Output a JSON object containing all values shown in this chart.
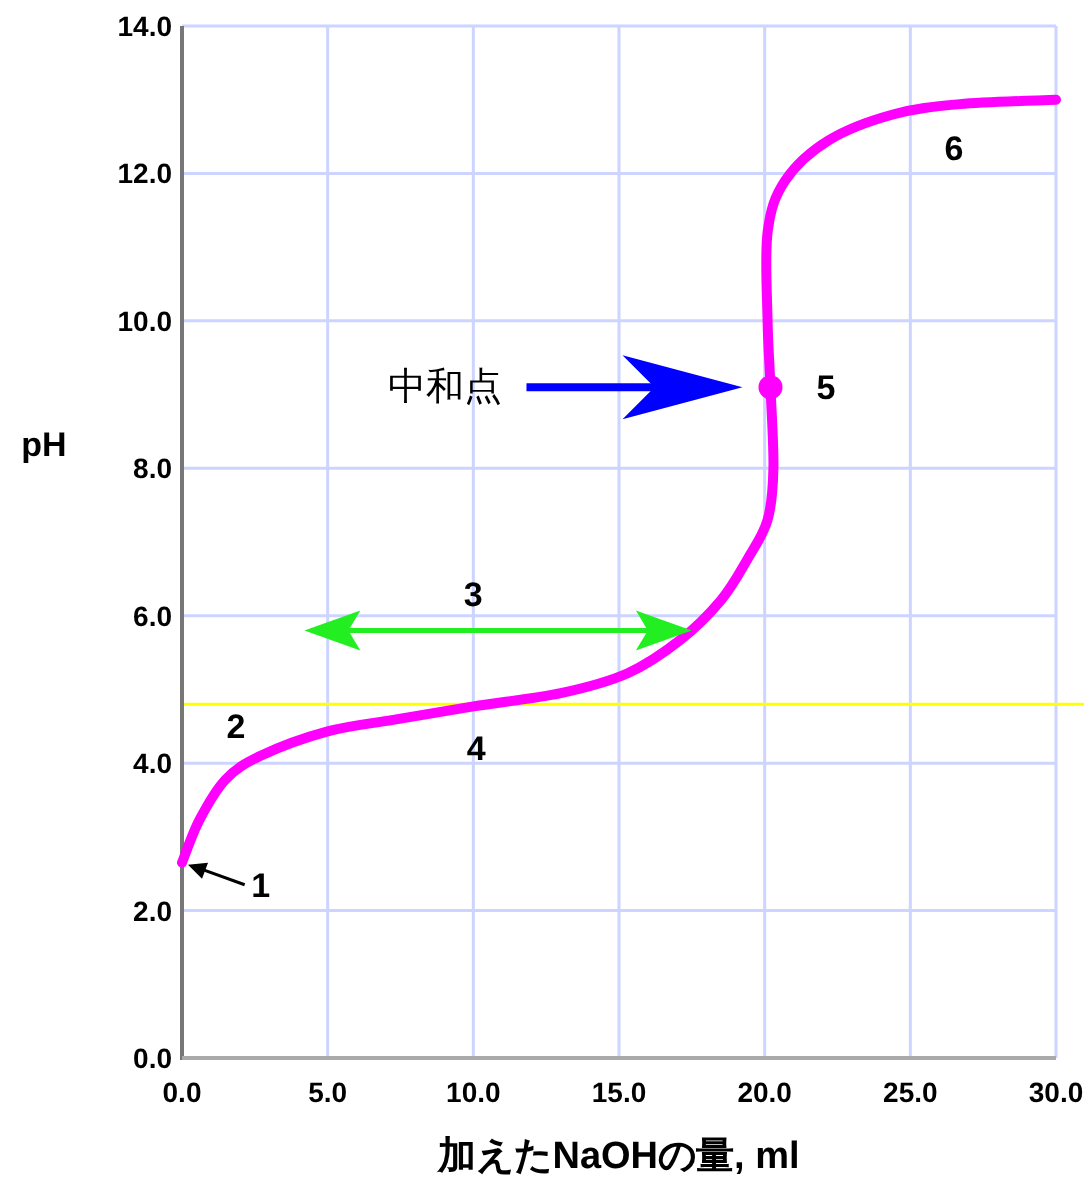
{
  "chart_data": {
    "type": "line",
    "xlabel": "加えたNaOHの量, ml",
    "ylabel": "pH",
    "xlim": [
      0,
      30
    ],
    "ylim": [
      0,
      14
    ],
    "xticks": [
      {
        "value": 0,
        "label": "0.0"
      },
      {
        "value": 5,
        "label": "5.0"
      },
      {
        "value": 10,
        "label": "10.0"
      },
      {
        "value": 15,
        "label": "15.0"
      },
      {
        "value": 20,
        "label": "20.0"
      },
      {
        "value": 25,
        "label": "25.0"
      },
      {
        "value": 30,
        "label": "30.0"
      }
    ],
    "yticks": [
      {
        "value": 0,
        "label": "0.0"
      },
      {
        "value": 2,
        "label": "2.0"
      },
      {
        "value": 4,
        "label": "4.0"
      },
      {
        "value": 6,
        "label": "6.0"
      },
      {
        "value": 8,
        "label": "8.0"
      },
      {
        "value": 10,
        "label": "10.0"
      },
      {
        "value": 12,
        "label": "12.0"
      },
      {
        "value": 14,
        "label": "14.0"
      }
    ],
    "grid": true,
    "line_style": "solid",
    "series": [
      {
        "color": "#ff00ff",
        "x": [
          0,
          0.6,
          1.5,
          2.7,
          5.0,
          7.3,
          10,
          13,
          15.3,
          17.1,
          18.5,
          19.4,
          20.1,
          20.3,
          20.2,
          20.1,
          20.1,
          20.7,
          22.2,
          24.4,
          26.7,
          30
        ],
        "values": [
          2.65,
          3.23,
          3.78,
          4.1,
          4.43,
          4.59,
          4.77,
          4.95,
          5.22,
          5.67,
          6.21,
          6.76,
          7.3,
          8.0,
          9.1,
          10.0,
          11.2,
          11.9,
          12.45,
          12.8,
          12.94,
          13.0
        ]
      },
      {
        "type": "scatter",
        "color": "#ff00ff",
        "x": [
          20.2
        ],
        "values": [
          9.1
        ]
      }
    ],
    "ref_lines": [
      {
        "axis": "y",
        "value": 4.8,
        "color": "#ffff00"
      }
    ],
    "annotations": [
      "1",
      "2",
      "3",
      "4",
      "5",
      "6",
      "中和点"
    ]
  }
}
